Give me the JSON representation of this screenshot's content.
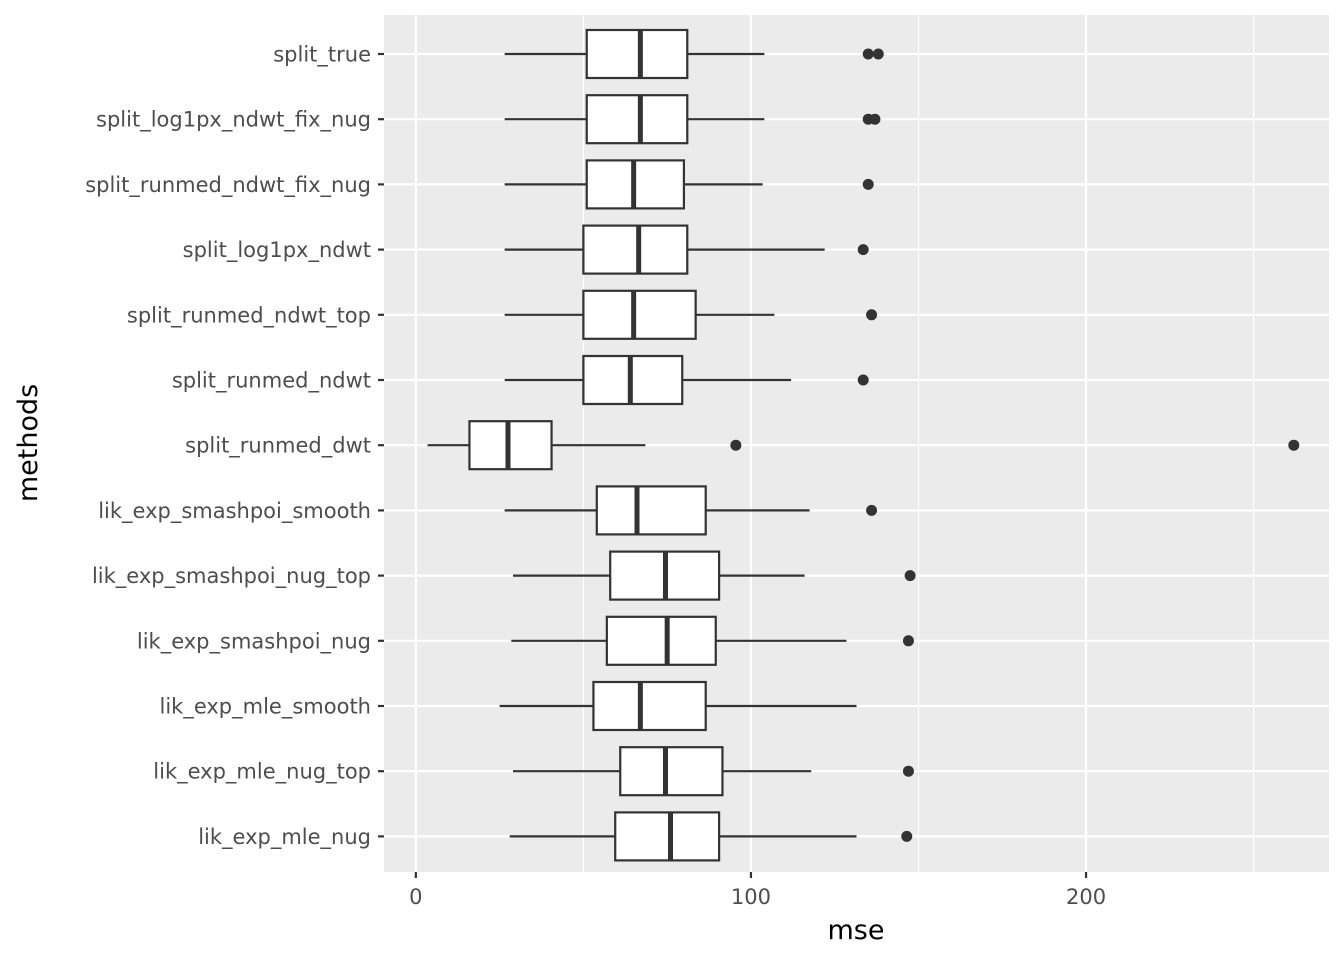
{
  "chart_data": {
    "type": "boxplot",
    "orientation": "horizontal",
    "title": "",
    "xlabel": "mse",
    "ylabel": "methods",
    "xlim": [
      -9.5,
      272.5
    ],
    "x_ticks": [
      0,
      100,
      200
    ],
    "x_tick_labels": [
      "0",
      "100",
      "200"
    ],
    "grid": true,
    "legend": "none",
    "colors": {
      "panel_background": "#ebebeb",
      "grid_major": "#ffffff",
      "box_fill": "#ffffff",
      "box_stroke": "#333333",
      "outlier": "#333333",
      "tick_label": "#4d4d4d",
      "axis_title": "#000000"
    },
    "categories": [
      "split_true",
      "split_log1px_ndwt_fix_nug",
      "split_runmed_ndwt_fix_nug",
      "split_log1px_ndwt",
      "split_runmed_ndwt_top",
      "split_runmed_ndwt",
      "split_runmed_dwt",
      "lik_exp_smashpoi_smooth",
      "lik_exp_smashpoi_nug_top",
      "lik_exp_smashpoi_nug",
      "lik_exp_mle_smooth",
      "lik_exp_mle_nug_top",
      "lik_exp_mle_nug"
    ],
    "boxes": [
      {
        "name": "split_true",
        "whisker_low": 26.5,
        "q1": 51,
        "median": 67,
        "q3": 81,
        "whisker_high": 104,
        "outliers": [
          135,
          138
        ]
      },
      {
        "name": "split_log1px_ndwt_fix_nug",
        "whisker_low": 26.5,
        "q1": 51,
        "median": 67,
        "q3": 81,
        "whisker_high": 104,
        "outliers": [
          135,
          137
        ]
      },
      {
        "name": "split_runmed_ndwt_fix_nug",
        "whisker_low": 26.5,
        "q1": 51,
        "median": 65,
        "q3": 80,
        "whisker_high": 103.5,
        "outliers": [
          135
        ]
      },
      {
        "name": "split_log1px_ndwt",
        "whisker_low": 26.5,
        "q1": 50,
        "median": 66.5,
        "q3": 81,
        "whisker_high": 122,
        "outliers": [
          133.5
        ]
      },
      {
        "name": "split_runmed_ndwt_top",
        "whisker_low": 26.5,
        "q1": 50,
        "median": 65,
        "q3": 83.5,
        "whisker_high": 107,
        "outliers": [
          136
        ]
      },
      {
        "name": "split_runmed_ndwt",
        "whisker_low": 26.5,
        "q1": 50,
        "median": 64,
        "q3": 79.5,
        "whisker_high": 112,
        "outliers": [
          133.5
        ]
      },
      {
        "name": "split_runmed_dwt",
        "whisker_low": 3.5,
        "q1": 16,
        "median": 27.5,
        "q3": 40.5,
        "whisker_high": 68.5,
        "outliers": [
          95.5,
          262
        ]
      },
      {
        "name": "lik_exp_smashpoi_smooth",
        "whisker_low": 26.5,
        "q1": 54,
        "median": 66,
        "q3": 86.5,
        "whisker_high": 117.5,
        "outliers": [
          136
        ]
      },
      {
        "name": "lik_exp_smashpoi_nug_top",
        "whisker_low": 29,
        "q1": 58,
        "median": 74.5,
        "q3": 90.5,
        "whisker_high": 116,
        "outliers": [
          147.5
        ]
      },
      {
        "name": "lik_exp_smashpoi_nug",
        "whisker_low": 28.5,
        "q1": 57,
        "median": 75,
        "q3": 89.5,
        "whisker_high": 128.5,
        "outliers": [
          147
        ]
      },
      {
        "name": "lik_exp_mle_smooth",
        "whisker_low": 25,
        "q1": 53,
        "median": 67,
        "q3": 86.5,
        "whisker_high": 131.5,
        "outliers": []
      },
      {
        "name": "lik_exp_mle_nug_top",
        "whisker_low": 29,
        "q1": 61,
        "median": 74.5,
        "q3": 91.5,
        "whisker_high": 118,
        "outliers": [
          147
        ]
      },
      {
        "name": "lik_exp_mle_nug",
        "whisker_low": 28,
        "q1": 59.5,
        "median": 76,
        "q3": 90.5,
        "whisker_high": 131.5,
        "outliers": [
          146.5
        ]
      }
    ]
  }
}
